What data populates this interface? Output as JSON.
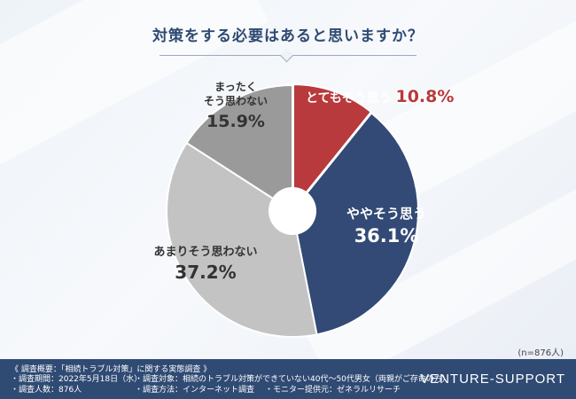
{
  "chart_data": {
    "type": "pie",
    "title": "対策をする必要はあると思いますか？",
    "slices": [
      {
        "label": "とてもそう思う",
        "value_text": "10.8%",
        "value": 10.8,
        "color": "#b83a3c"
      },
      {
        "label": "ややそう思う",
        "value_text": "36.1%",
        "value": 36.1,
        "color": "#324a75"
      },
      {
        "label": "あまりそう思わない",
        "value_text": "37.2%",
        "value": 37.2,
        "color": "#c3c3c3"
      },
      {
        "label": "まったく\nそう思わない",
        "value_text": "15.9%",
        "value": 15.9,
        "color": "#9a9a9a"
      }
    ],
    "sample": "(n=876人)"
  },
  "footer": {
    "heading": "《 調査概要：「相続トラブル対策」に関する実態調査 》",
    "period": "・調査期間：2022年5月18日（水）",
    "people": "・調査人数：876人",
    "target": "・調査対象：相続のトラブル対策ができていない40代〜50代男女（両親がご存命の方）",
    "method": "・調査方法：インターネット調査",
    "provider": "・モニター提供元：ゼネラルリサーチ",
    "brand": "VENTURE-SUPPORT"
  }
}
